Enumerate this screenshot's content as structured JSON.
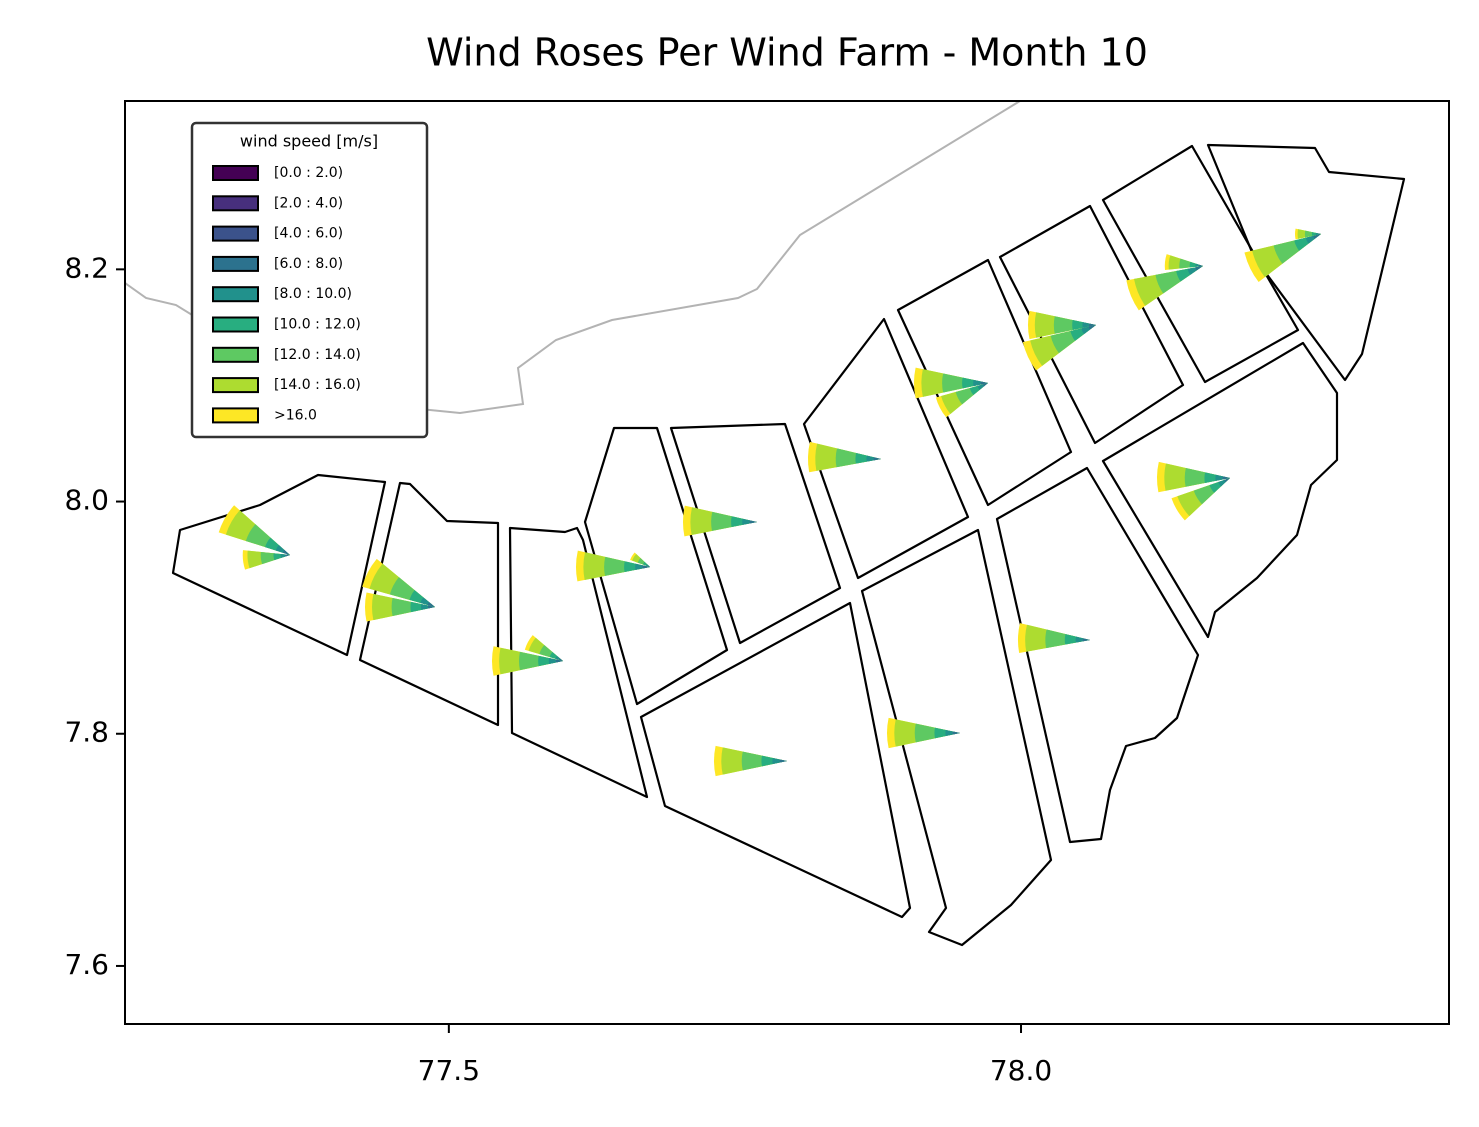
{
  "chart_data": {
    "type": "map",
    "title": "Wind Roses Per Wind Farm - Month 10",
    "xlim": [
      77.217,
      78.374
    ],
    "ylim": [
      7.55,
      8.345
    ],
    "xticks": [
      77.5,
      {
        "value": 78,
        "label": "78.0"
      }
    ],
    "yticks": [
      7.6,
      7.8,
      {
        "value": 8,
        "label": "8.0"
      },
      8.2
    ],
    "legend": {
      "title": "wind speed [m/s]",
      "position": "upper left",
      "items": [
        {
          "name": "[0.0 : 2.0)",
          "color": "#440154"
        },
        {
          "name": "[2.0 : 4.0)",
          "color": "#472f7d"
        },
        {
          "name": "[4.0 : 6.0)",
          "color": "#3b528b"
        },
        {
          "name": "[6.0 : 8.0)",
          "color": "#2c728e"
        },
        {
          "name": "[8.0 : 10.0)",
          "color": "#21918c"
        },
        {
          "name": "[10.0 : 12.0)",
          "color": "#28ae80"
        },
        {
          "name": "[12.0 : 14.0)",
          "color": "#5ec962"
        },
        {
          "name": "[14.0 : 16.0)",
          "color": "#addc30"
        },
        {
          "name": ">16.0",
          "color": "#fde725"
        }
      ]
    }
  }
}
